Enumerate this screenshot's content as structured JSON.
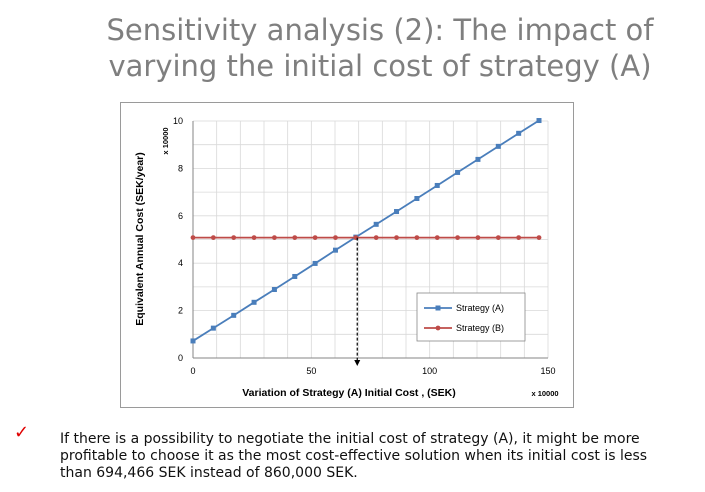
{
  "slide": {
    "title": "Sensitivity analysis (2): The impact of varying the initial cost of strategy (A)",
    "bullet_icon": "checkmark-icon",
    "bullet_color": "#e00000",
    "note": "If there is a possibility to negotiate the initial cost of strategy (A), it might be more profitable to choose it as the most cost-effective solution when its initial cost is less than 694,466 SEK instead of 860,000 SEK."
  },
  "chart_data": {
    "type": "line",
    "title": "",
    "xlabel": "Variation of Strategy (A) Initial Cost , (SEK)",
    "ylabel": "Equivalent Annual Cost (SEK/year)",
    "x_multiplier": "x 10000",
    "y_multiplier": "x 10000",
    "xlim": [
      0,
      150
    ],
    "ylim": [
      0,
      10
    ],
    "x_ticks": [
      0,
      50,
      100,
      150
    ],
    "y_ticks": [
      0,
      2,
      4,
      6,
      8,
      10
    ],
    "grid": true,
    "legend_position": "bottom-right",
    "x": [
      0,
      8.6,
      17.2,
      25.8,
      34.4,
      43.0,
      51.6,
      60.2,
      68.8,
      77.4,
      86.0,
      94.6,
      103.2,
      111.8,
      120.4,
      129.0,
      137.6,
      146.2
    ],
    "series": [
      {
        "name": "Strategy (A)",
        "color": "#4a7ebb",
        "marker": "square",
        "values": [
          0.72,
          1.26,
          1.8,
          2.35,
          2.89,
          3.44,
          3.99,
          4.55,
          5.1,
          5.64,
          6.18,
          6.73,
          7.28,
          7.83,
          8.38,
          8.93,
          9.48,
          10.02
        ]
      },
      {
        "name": "Strategy (B)",
        "color": "#be4b48",
        "marker": "circle",
        "values": [
          5.08,
          5.08,
          5.08,
          5.08,
          5.08,
          5.08,
          5.08,
          5.08,
          5.08,
          5.08,
          5.08,
          5.08,
          5.08,
          5.08,
          5.08,
          5.08,
          5.08,
          5.08
        ]
      }
    ],
    "break_even": {
      "x": 69.4,
      "y": 5.08
    }
  }
}
